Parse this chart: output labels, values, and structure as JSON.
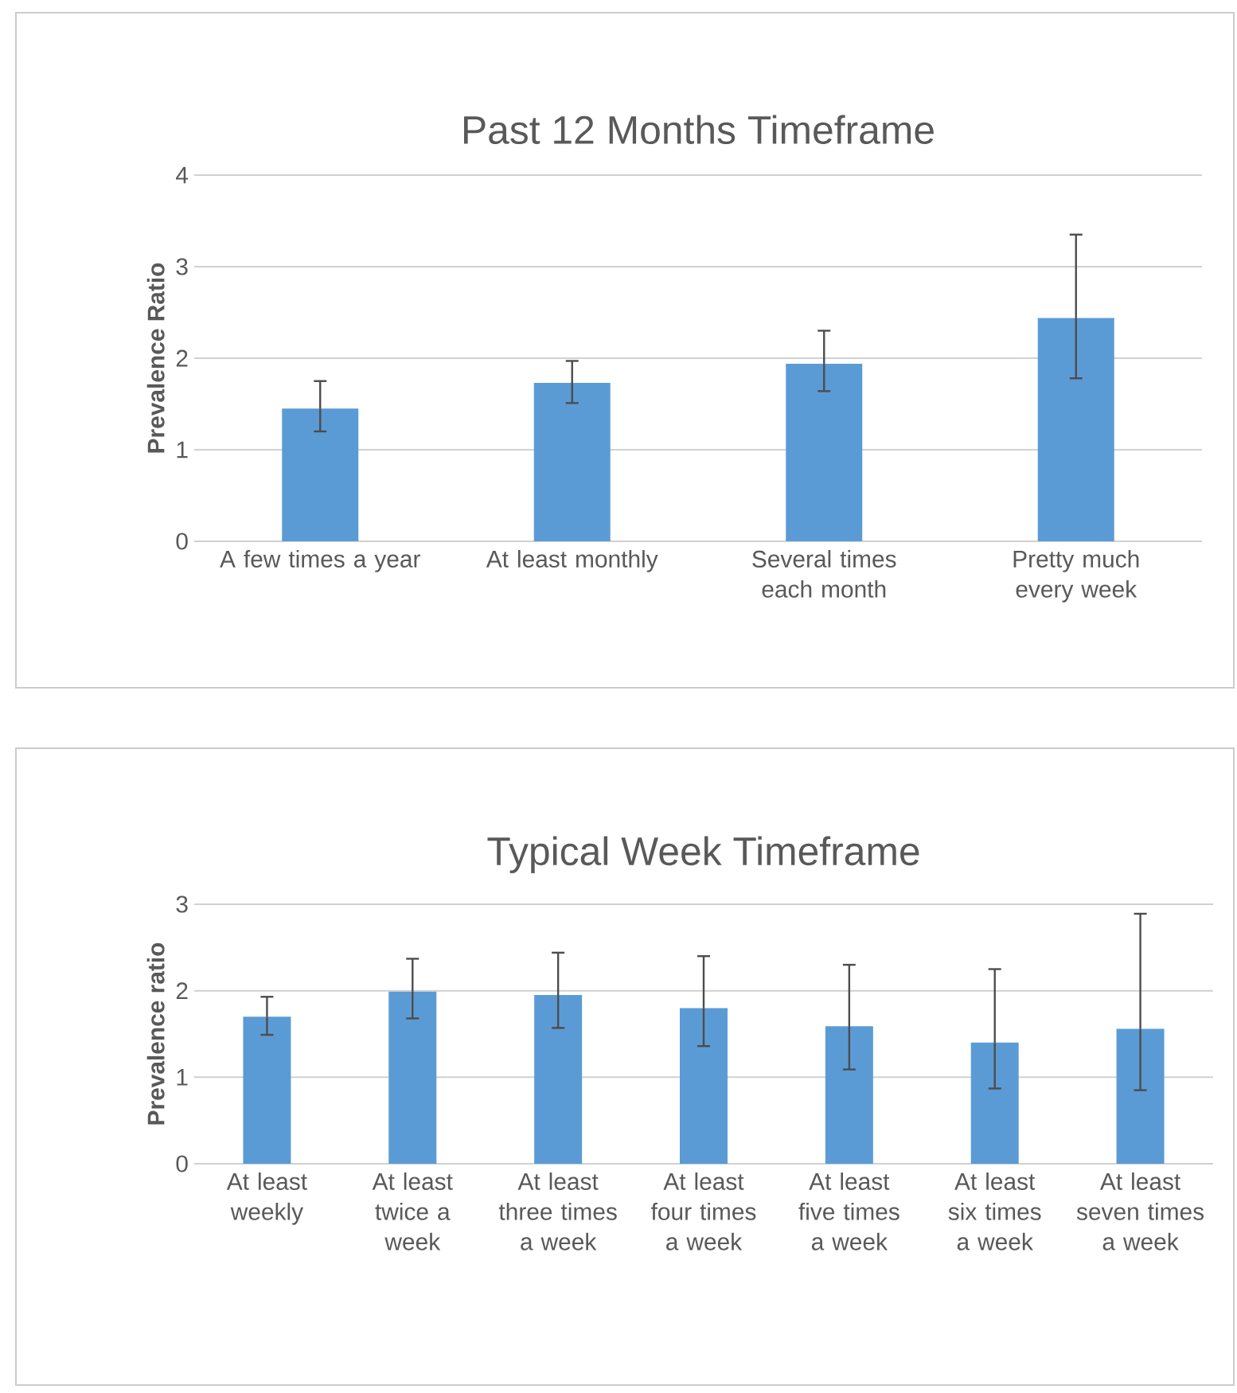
{
  "chart_data": [
    {
      "type": "bar",
      "title": "Past 12 Months Timeframe",
      "ylabel": "Prevalence Ratio",
      "categories": [
        "A few times a year",
        "At least monthly",
        "Several times each month",
        "Pretty much every week"
      ],
      "values": [
        1.45,
        1.73,
        1.94,
        2.44
      ],
      "errors": [
        [
          1.2,
          1.75
        ],
        [
          1.51,
          1.97
        ],
        [
          1.64,
          2.3
        ],
        [
          1.78,
          3.35
        ]
      ],
      "color": "#5b9bd5",
      "ylim": [
        0,
        4
      ],
      "yticks": [
        0,
        1,
        2,
        3,
        4
      ],
      "grid": "y"
    },
    {
      "type": "bar",
      "title": "Typical Week Timeframe",
      "ylabel": "Prevalence ratio",
      "categories": [
        "At least weekly",
        "At least twice a week",
        "At least three times a week",
        "At least four times a week",
        "At least five times a week",
        "At least six times a week",
        "At least seven times a week"
      ],
      "values": [
        1.7,
        1.99,
        1.95,
        1.8,
        1.59,
        1.4,
        1.56
      ],
      "errors": [
        [
          1.49,
          1.93
        ],
        [
          1.68,
          2.37
        ],
        [
          1.57,
          2.44
        ],
        [
          1.36,
          2.4
        ],
        [
          1.09,
          2.3
        ],
        [
          0.87,
          2.25
        ],
        [
          0.85,
          2.89
        ]
      ],
      "color": "#5b9bd5",
      "ylim": [
        0,
        3
      ],
      "yticks": [
        0,
        1,
        2,
        3
      ],
      "grid": "y"
    }
  ]
}
